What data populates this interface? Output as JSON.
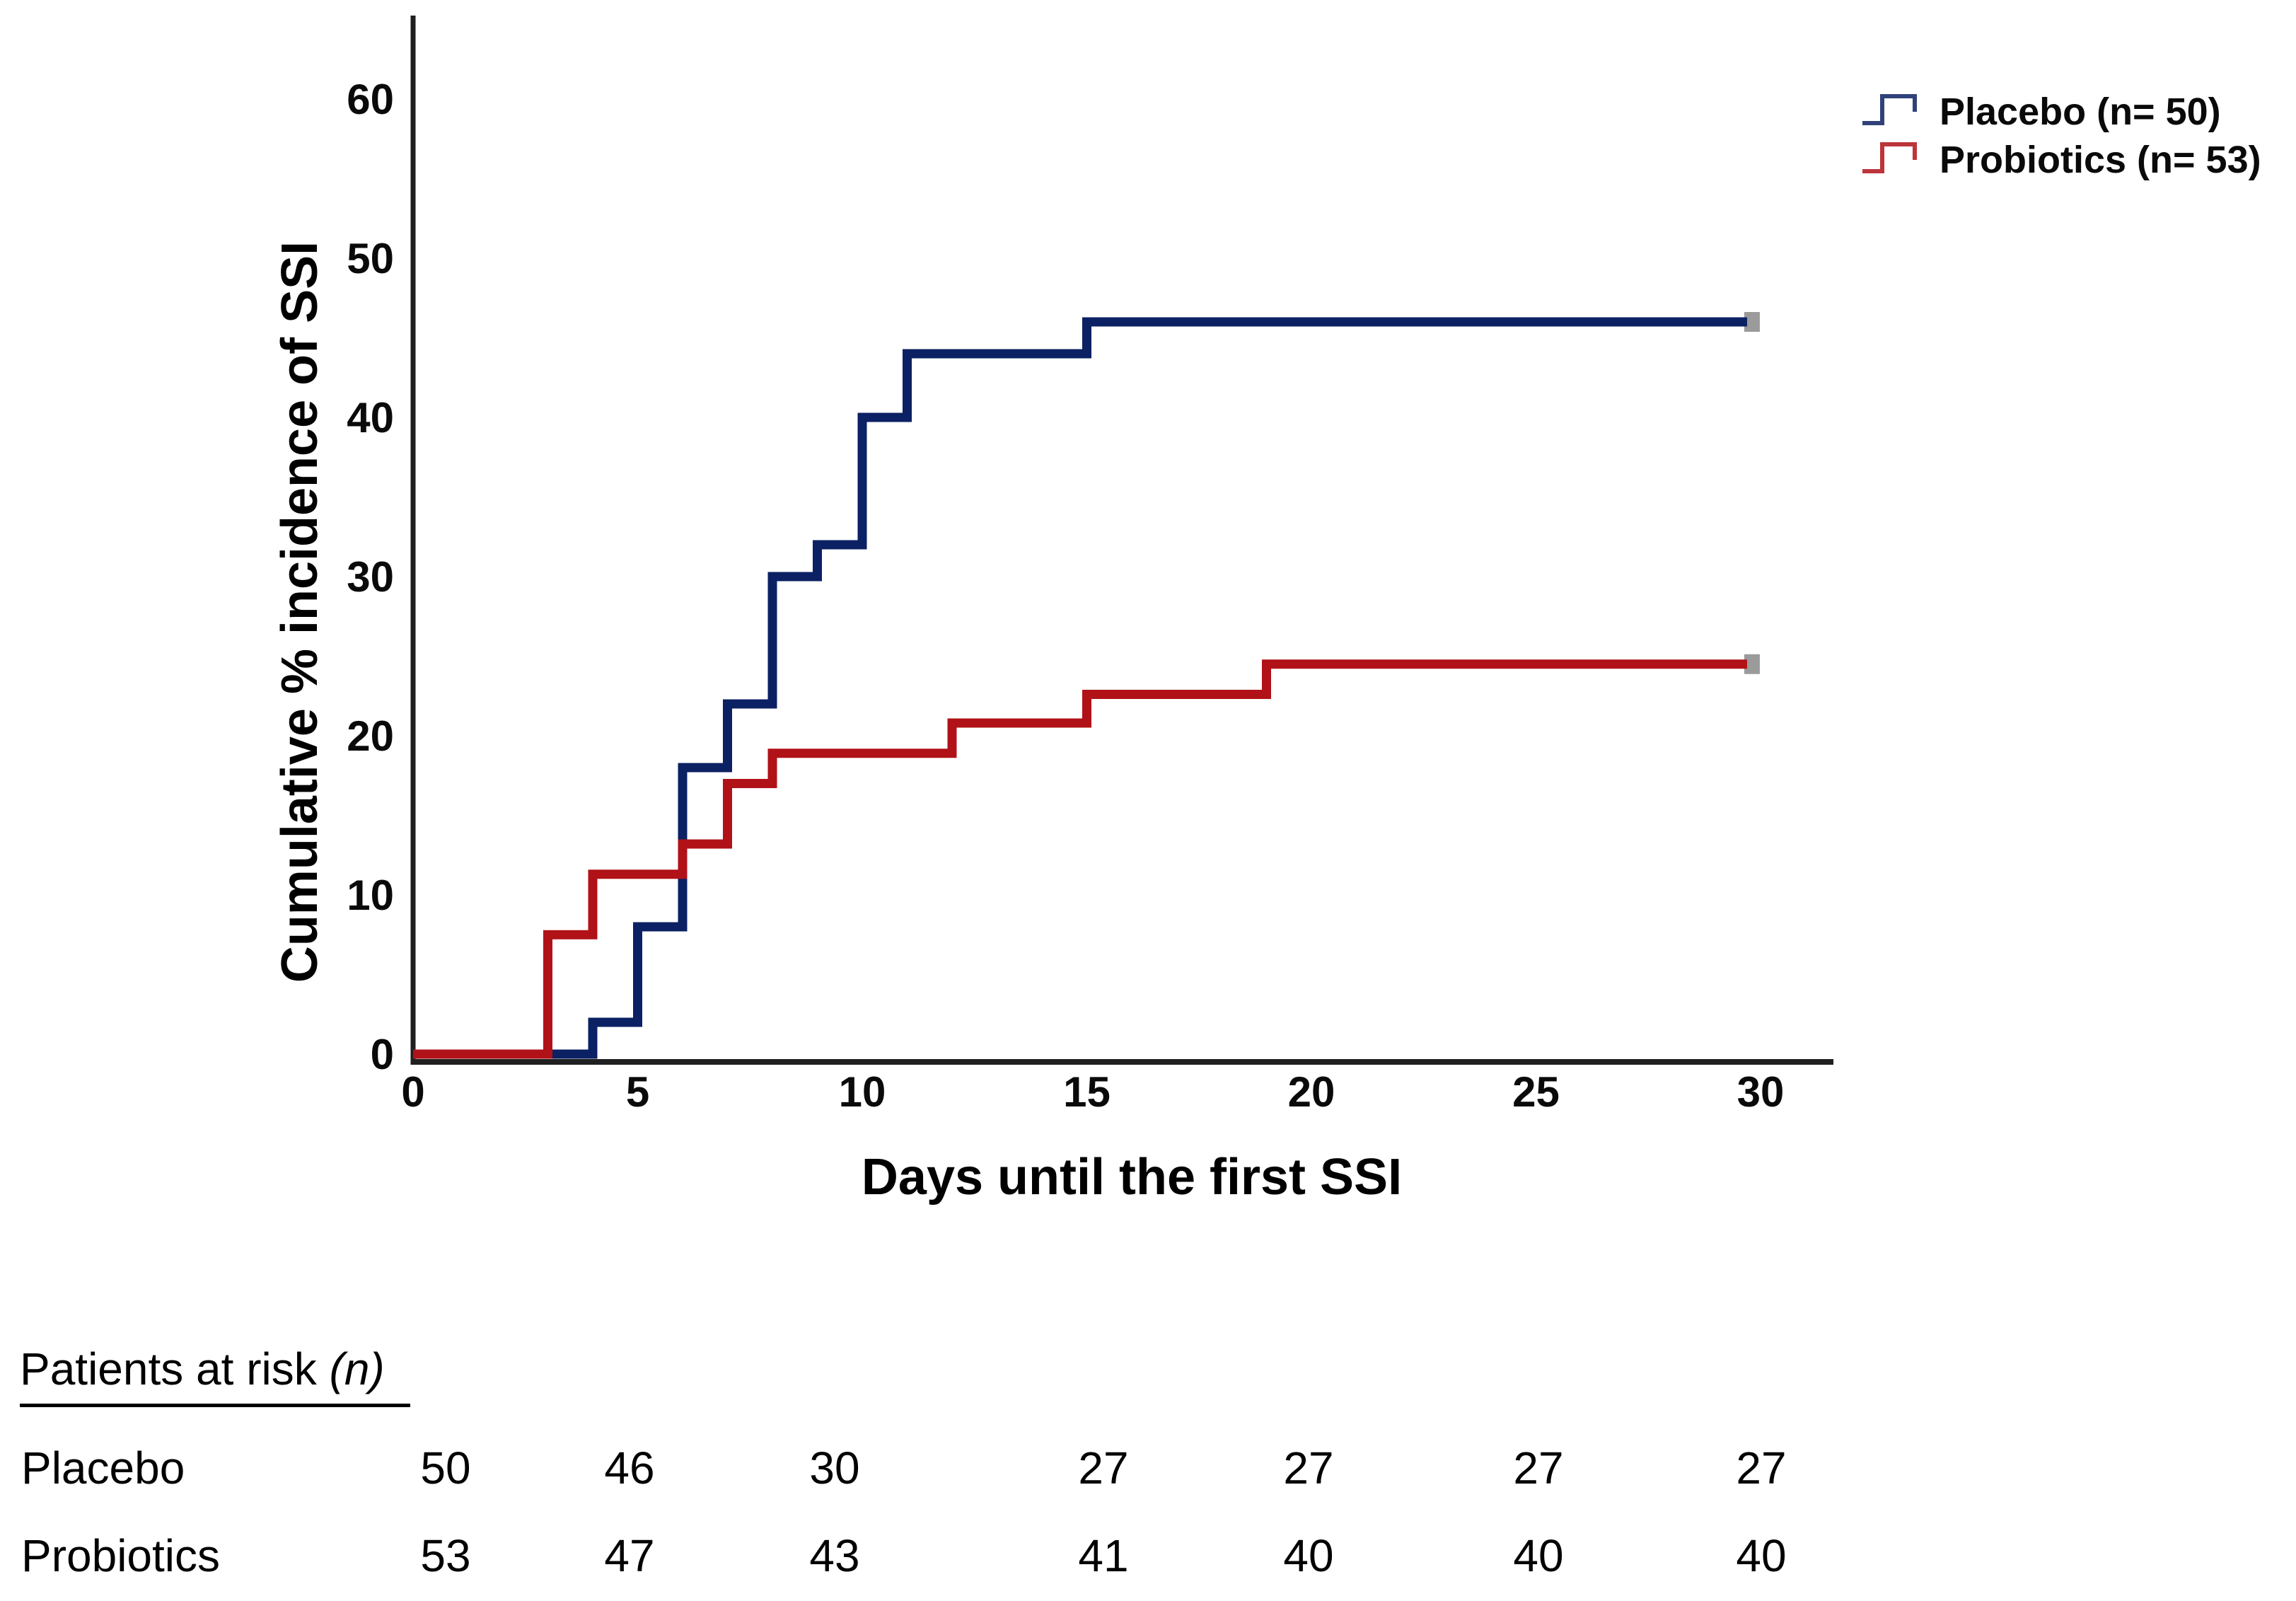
{
  "colors": {
    "placebo": "#0c2163",
    "probiotics": "#b01217",
    "axis": "#1f1f1f",
    "endcap": "#9b9b9b",
    "text": "#000000"
  },
  "chart_data": {
    "type": "line",
    "subtype": "step",
    "title": "",
    "xlabel": "Days until the first SSI",
    "ylabel": "Cumulative % incidence of SSI",
    "x_ticks": [
      0,
      5,
      10,
      15,
      20,
      25,
      30
    ],
    "y_ticks": [
      0,
      10,
      20,
      30,
      40,
      50,
      60
    ],
    "xlim": [
      0,
      31.6
    ],
    "ylim": [
      0,
      65
    ],
    "grid": false,
    "legend_position": "top-right",
    "series": [
      {
        "name": "Placebo (n= 50)",
        "color": "#0c2163",
        "n": 50,
        "points": [
          [
            0,
            0
          ],
          [
            4,
            0
          ],
          [
            4,
            2
          ],
          [
            5,
            2
          ],
          [
            5,
            8
          ],
          [
            6,
            8
          ],
          [
            6,
            18
          ],
          [
            7,
            18
          ],
          [
            7,
            22
          ],
          [
            8,
            22
          ],
          [
            8,
            30
          ],
          [
            9,
            30
          ],
          [
            9,
            32
          ],
          [
            10,
            32
          ],
          [
            10,
            40
          ],
          [
            11,
            40
          ],
          [
            11,
            44
          ],
          [
            15,
            44
          ],
          [
            15,
            46
          ],
          [
            29.7,
            46
          ]
        ]
      },
      {
        "name": "Probiotics (n= 53)",
        "color": "#b01217",
        "n": 53,
        "points": [
          [
            0,
            0
          ],
          [
            3,
            0
          ],
          [
            3,
            7.5
          ],
          [
            4,
            7.5
          ],
          [
            4,
            11.3
          ],
          [
            6,
            11.3
          ],
          [
            6,
            13.2
          ],
          [
            7,
            13.2
          ],
          [
            7,
            17
          ],
          [
            8,
            17
          ],
          [
            8,
            18.9
          ],
          [
            12,
            18.9
          ],
          [
            12,
            20.8
          ],
          [
            15,
            20.8
          ],
          [
            15,
            22.6
          ],
          [
            19,
            22.6
          ],
          [
            19,
            24.5
          ],
          [
            29.7,
            24.5
          ]
        ]
      }
    ]
  },
  "legend": {
    "items": [
      {
        "label": "Placebo (n= 50)",
        "color": "#0c2163"
      },
      {
        "label": "Probiotics (n= 53)",
        "color": "#b01217"
      }
    ]
  },
  "risk_table": {
    "title_main": "Patients at risk ",
    "title_italic": "(n)",
    "timepoints": [
      0,
      5,
      10,
      15,
      20,
      25,
      30
    ],
    "rows": [
      {
        "label": "Placebo",
        "counts": [
          50,
          46,
          30,
          27,
          27,
          27,
          27
        ]
      },
      {
        "label": "Probiotics",
        "counts": [
          53,
          47,
          43,
          41,
          40,
          40,
          40
        ]
      }
    ]
  }
}
